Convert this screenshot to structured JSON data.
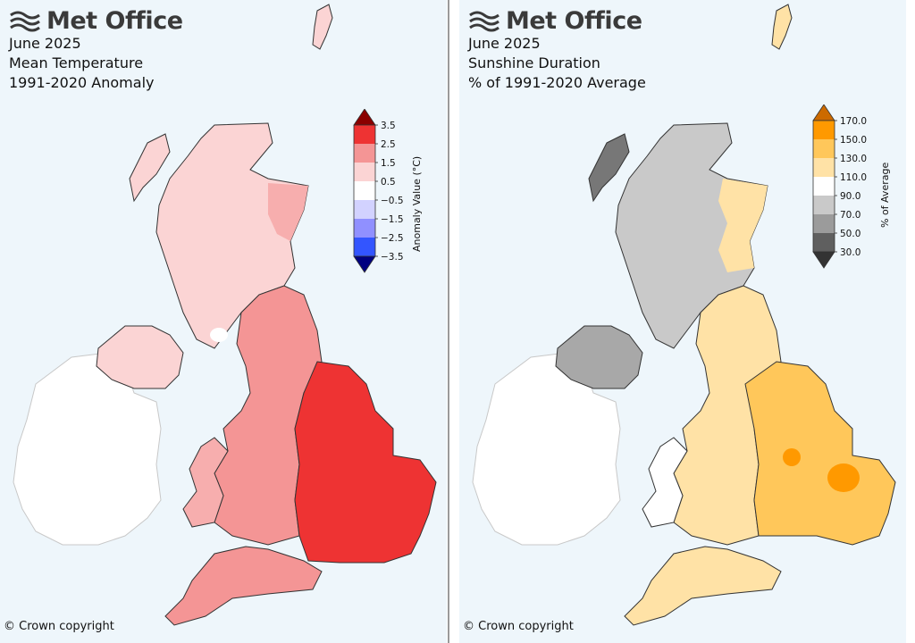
{
  "brand": {
    "name": "Met Office",
    "logo_icon": "met-office-wave-icon"
  },
  "left_map": {
    "month": "June 2025",
    "variable": "Mean Temperature",
    "period": "1991-2020 Anomaly",
    "legend": {
      "title": "Anomaly Value (°C)",
      "ticks": [
        "3.5",
        "2.5",
        "1.5",
        "0.5",
        "−0.5",
        "−1.5",
        "−2.5",
        "−3.5"
      ],
      "colors": {
        "over": "#8b0000",
        "bins": [
          "#ee3333",
          "#f49595",
          "#fbd4d4",
          "#ffffff",
          "#d2d2ff",
          "#9090ff",
          "#3355ff"
        ],
        "under": "#000080"
      }
    },
    "region_colors": {
      "scotland": "#fbd4d4",
      "scotland_east": "#f7aeae",
      "northern_ireland": "#fbd4d4",
      "north_east_england": "#f49595",
      "east_england": "#ee3333",
      "wales": "#f7aeae",
      "south_west": "#f49595",
      "midlands": "#f49595",
      "ireland": "#ffffff",
      "cool_spot": "#ffffff"
    },
    "copyright": "© Crown copyright"
  },
  "right_map": {
    "month": "June 2025",
    "variable": "Sunshine Duration",
    "period": "% of 1991-2020 Average",
    "legend": {
      "title": "% of Average",
      "ticks": [
        "170.0",
        "150.0",
        "130.0",
        "110.0",
        "90.0",
        "70.0",
        "50.0",
        "30.0"
      ],
      "colors": {
        "over": "#cc6a00",
        "bins": [
          "#ff9900",
          "#ffc75a",
          "#ffe2a6",
          "#ffffff",
          "#c9c9c9",
          "#9b9b9b",
          "#5f5f5f"
        ],
        "under": "#333333"
      }
    },
    "region_colors": {
      "scotland_west": "#c9c9c9",
      "hebrides": "#777777",
      "scotland_east": "#ffe2a6",
      "northern_ireland": "#a8a8a8",
      "north_england": "#ffe2a6",
      "midlands": "#ffc75a",
      "east_hotspot": "#ff9900",
      "wales": "#ffffff",
      "south_west": "#ffe2a6",
      "ireland": "#ffffff"
    },
    "copyright": "© Crown copyright"
  }
}
